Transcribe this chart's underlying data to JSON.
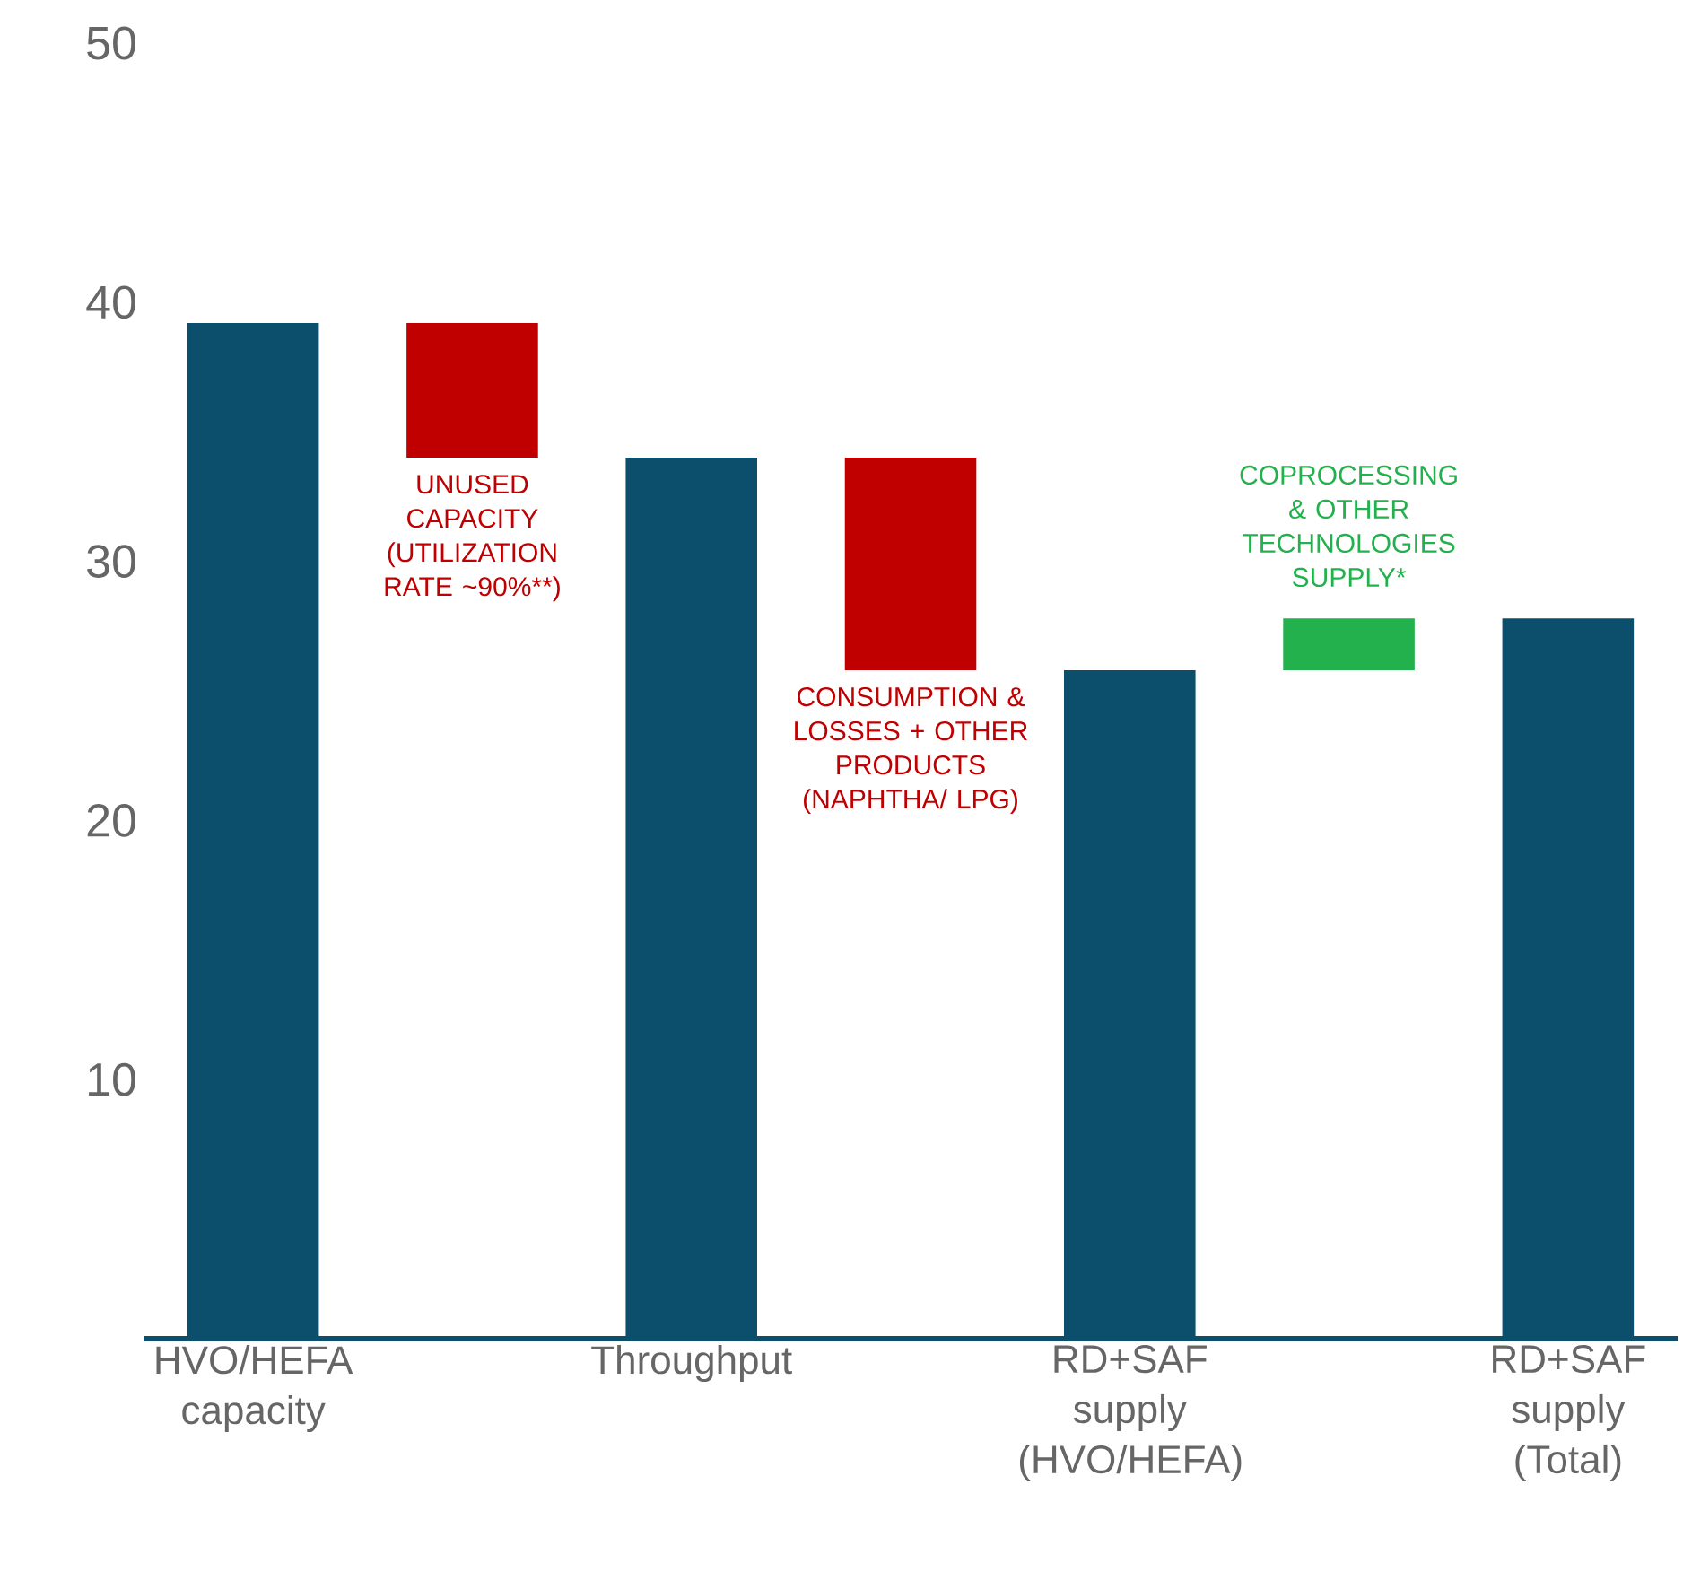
{
  "chart_data": {
    "type": "bar",
    "categories": [
      "HVO/HEFA capacity",
      null,
      "Throughput",
      null,
      "RD+SAF supply (HVO/HEFA)",
      null,
      "RD+SAF supply (Total)"
    ],
    "values": [
      39.2,
      -5.2,
      34,
      -8.2,
      25.8,
      2.0,
      27.8
    ],
    "base": [
      0,
      39.2,
      0,
      34,
      0,
      25.8,
      0
    ],
    "colors": [
      "#0b4f6c",
      "#c00000",
      "#0b4f6c",
      "#c00000",
      "#0b4f6c",
      "#22b14c",
      "#0b4f6c"
    ],
    "ylim": [
      0,
      50
    ],
    "yticks": [
      10,
      20,
      30,
      40,
      50
    ],
    "annotations": [
      "UNUSED CAPACITY (UTILIZATION RATE ~90%**)",
      "CONSUMPTION & LOSSES + OTHER PRODUCTS (NAPHTHA/ LPG)",
      "COPROCESSING & OTHER TECHNOLOGIES SUPPLY*"
    ]
  }
}
